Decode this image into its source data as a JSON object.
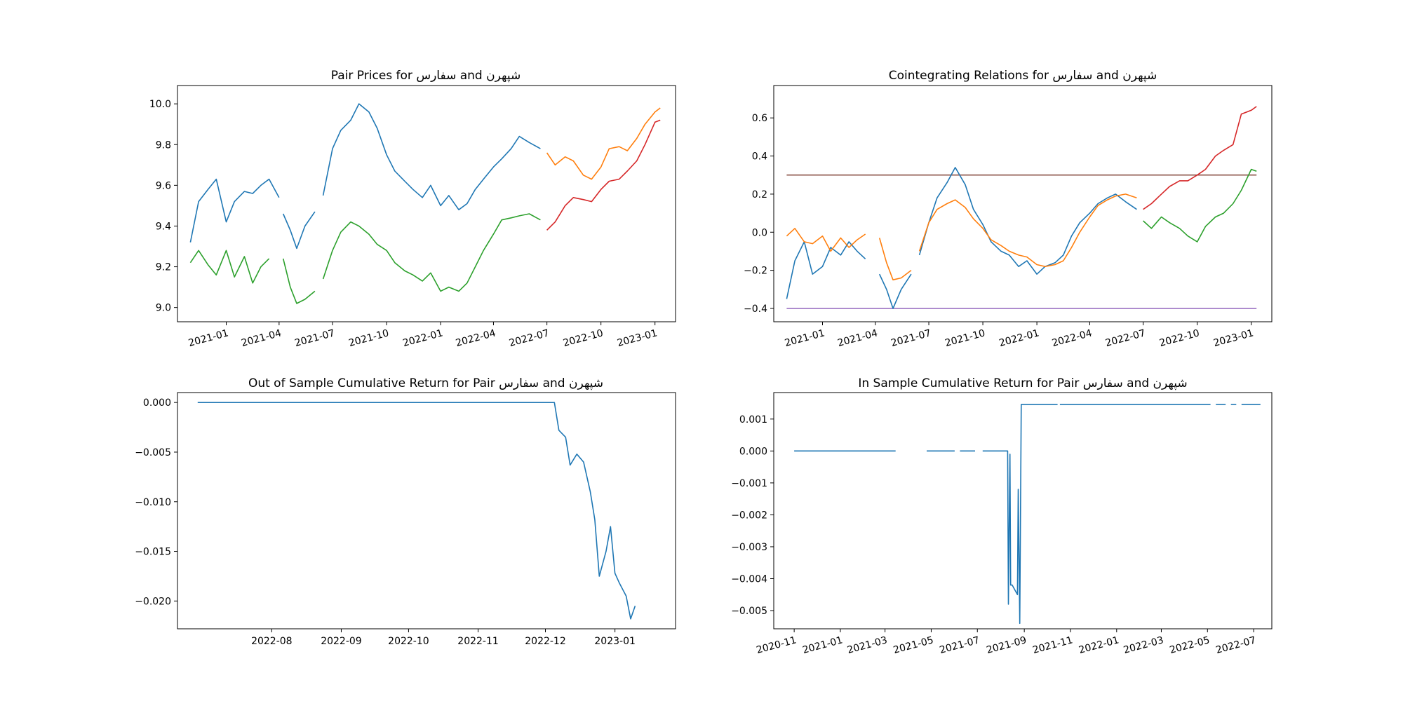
{
  "chart_data": [
    {
      "type": "line",
      "title": "Pair Prices for سفارس and شپهرن",
      "xaxis": "date",
      "xlim": [
        "2020-10-10",
        "2023-02-05"
      ],
      "ylim": [
        8.93,
        10.09
      ],
      "xticks": [
        "2021-01-01",
        "2021-04-01",
        "2021-07-01",
        "2021-10-01",
        "2022-01-01",
        "2022-04-01",
        "2022-07-01",
        "2022-10-01",
        "2023-01-01"
      ],
      "xtick_labels": [
        "2021-01",
        "2021-04",
        "2021-07",
        "2021-10",
        "2022-01",
        "2022-04",
        "2022-07",
        "2022-10",
        "2023-01"
      ],
      "yticks": [
        9.0,
        9.2,
        9.4,
        9.6,
        9.8,
        10.0
      ],
      "ytick_labels": [
        "9.0",
        "9.2",
        "9.4",
        "9.6",
        "9.8",
        "10.0"
      ],
      "series": [
        {
          "color": "#1f77b4",
          "x": [
            "2020-11-01",
            "2020-11-15",
            "2020-12-01",
            "2020-12-15",
            "2021-01-01",
            "2021-01-15",
            "2021-02-01",
            "2021-02-15",
            "2021-03-01",
            "2021-03-15",
            "2021-04-01"
          ],
          "y": [
            9.32,
            9.52,
            9.58,
            9.63,
            9.42,
            9.52,
            9.57,
            9.56,
            9.6,
            9.63,
            9.54
          ]
        },
        {
          "color": "#1f77b4",
          "x": [
            "2021-04-08",
            "2021-04-20",
            "2021-05-01",
            "2021-05-15",
            "2021-06-01"
          ],
          "y": [
            9.46,
            9.38,
            9.29,
            9.4,
            9.47
          ]
        },
        {
          "color": "#1f77b4",
          "x": [
            "2021-06-15",
            "2021-07-01",
            "2021-07-15",
            "2021-08-01",
            "2021-08-15",
            "2021-09-01",
            "2021-09-15",
            "2021-10-01",
            "2021-10-15",
            "2021-11-01",
            "2021-11-15",
            "2021-12-01",
            "2021-12-15",
            "2022-01-01",
            "2022-01-15",
            "2022-02-01",
            "2022-02-15",
            "2022-03-01",
            "2022-03-15",
            "2022-04-01",
            "2022-04-15",
            "2022-05-01",
            "2022-05-15",
            "2022-06-01",
            "2022-06-20"
          ],
          "y": [
            9.55,
            9.78,
            9.87,
            9.92,
            10.0,
            9.96,
            9.88,
            9.75,
            9.67,
            9.62,
            9.58,
            9.54,
            9.6,
            9.5,
            9.55,
            9.48,
            9.51,
            9.58,
            9.63,
            9.69,
            9.73,
            9.78,
            9.84,
            9.81,
            9.78
          ]
        },
        {
          "color": "#2ca02c",
          "x": [
            "2020-11-01",
            "2020-11-15",
            "2020-12-01",
            "2020-12-15",
            "2021-01-01",
            "2021-01-15",
            "2021-02-01",
            "2021-02-15",
            "2021-03-01",
            "2021-03-15"
          ],
          "y": [
            9.22,
            9.28,
            9.21,
            9.16,
            9.28,
            9.15,
            9.25,
            9.12,
            9.2,
            9.24
          ]
        },
        {
          "color": "#2ca02c",
          "x": [
            "2021-04-08",
            "2021-04-20",
            "2021-05-01",
            "2021-05-15",
            "2021-06-01"
          ],
          "y": [
            9.24,
            9.1,
            9.02,
            9.04,
            9.08
          ]
        },
        {
          "color": "#2ca02c",
          "x": [
            "2021-06-15",
            "2021-07-01",
            "2021-07-15",
            "2021-08-01",
            "2021-08-15",
            "2021-09-01",
            "2021-09-15",
            "2021-10-01",
            "2021-10-15",
            "2021-11-01",
            "2021-11-15",
            "2021-12-01",
            "2021-12-15",
            "2022-01-01",
            "2022-01-15",
            "2022-02-01",
            "2022-02-15",
            "2022-03-01",
            "2022-03-15",
            "2022-04-01",
            "2022-04-15",
            "2022-05-01",
            "2022-05-15",
            "2022-06-01",
            "2022-06-20"
          ],
          "y": [
            9.14,
            9.28,
            9.37,
            9.42,
            9.4,
            9.36,
            9.31,
            9.28,
            9.22,
            9.18,
            9.16,
            9.13,
            9.17,
            9.08,
            9.1,
            9.08,
            9.12,
            9.2,
            9.28,
            9.36,
            9.43,
            9.44,
            9.45,
            9.46,
            9.43
          ]
        },
        {
          "color": "#ff7f0e",
          "x": [
            "2022-07-01",
            "2022-07-15",
            "2022-08-01",
            "2022-08-15",
            "2022-09-01",
            "2022-09-15",
            "2022-10-01",
            "2022-10-15",
            "2022-11-01",
            "2022-11-15",
            "2022-12-01",
            "2022-12-15",
            "2023-01-01",
            "2023-01-10"
          ],
          "y": [
            9.76,
            9.7,
            9.74,
            9.72,
            9.65,
            9.63,
            9.69,
            9.78,
            9.79,
            9.77,
            9.83,
            9.9,
            9.96,
            9.98
          ]
        },
        {
          "color": "#d62728",
          "x": [
            "2022-07-01",
            "2022-07-15",
            "2022-08-01",
            "2022-08-15",
            "2022-09-01",
            "2022-09-15",
            "2022-10-01",
            "2022-10-15",
            "2022-11-01",
            "2022-11-15",
            "2022-12-01",
            "2022-12-15",
            "2023-01-01",
            "2023-01-10"
          ],
          "y": [
            9.38,
            9.42,
            9.5,
            9.54,
            9.53,
            9.52,
            9.58,
            9.62,
            9.63,
            9.67,
            9.72,
            9.8,
            9.91,
            9.92
          ]
        }
      ]
    },
    {
      "type": "line",
      "title": "Cointegrating Relations for سفارس and شپهرن",
      "xaxis": "date",
      "xlim": [
        "2020-10-10",
        "2023-02-05"
      ],
      "ylim": [
        -0.47,
        0.77
      ],
      "xticks": [
        "2021-01-01",
        "2021-04-01",
        "2021-07-01",
        "2021-10-01",
        "2022-01-01",
        "2022-04-01",
        "2022-07-01",
        "2022-10-01",
        "2023-01-01"
      ],
      "xtick_labels": [
        "2021-01",
        "2021-04",
        "2021-07",
        "2021-10",
        "2022-01",
        "2022-04",
        "2022-07",
        "2022-10",
        "2023-01"
      ],
      "yticks": [
        -0.4,
        -0.2,
        0.0,
        0.2,
        0.4,
        0.6
      ],
      "ytick_labels": [
        "−0.4",
        "−0.2",
        "0.0",
        "0.2",
        "0.4",
        "0.6"
      ],
      "series": [
        {
          "color": "#8c564b",
          "x": [
            "2020-11-01",
            "2023-01-10"
          ],
          "y": [
            0.3,
            0.3
          ]
        },
        {
          "color": "#9467bd",
          "x": [
            "2020-11-01",
            "2023-01-10"
          ],
          "y": [
            -0.4,
            -0.4
          ]
        },
        {
          "color": "#1f77b4",
          "x": [
            "2020-11-01",
            "2020-11-15",
            "2020-12-01",
            "2020-12-15",
            "2021-01-01",
            "2021-01-15",
            "2021-02-01",
            "2021-02-15",
            "2021-03-01",
            "2021-03-15"
          ],
          "y": [
            -0.35,
            -0.15,
            -0.05,
            -0.22,
            -0.18,
            -0.08,
            -0.12,
            -0.05,
            -0.1,
            -0.14
          ]
        },
        {
          "color": "#1f77b4",
          "x": [
            "2021-04-08",
            "2021-04-20",
            "2021-05-01",
            "2021-05-15",
            "2021-06-01"
          ],
          "y": [
            -0.22,
            -0.3,
            -0.4,
            -0.3,
            -0.22
          ]
        },
        {
          "color": "#1f77b4",
          "x": [
            "2021-06-15",
            "2021-07-01",
            "2021-07-15",
            "2021-08-01",
            "2021-08-15",
            "2021-09-01",
            "2021-09-15",
            "2021-10-01",
            "2021-10-15",
            "2021-11-01",
            "2021-11-15",
            "2021-12-01",
            "2021-12-15",
            "2022-01-01",
            "2022-01-15",
            "2022-02-01",
            "2022-02-15",
            "2022-03-01",
            "2022-03-15",
            "2022-04-01",
            "2022-04-15",
            "2022-05-01",
            "2022-05-15",
            "2022-06-01",
            "2022-06-20"
          ],
          "y": [
            -0.12,
            0.05,
            0.18,
            0.26,
            0.34,
            0.25,
            0.12,
            0.04,
            -0.05,
            -0.1,
            -0.12,
            -0.18,
            -0.15,
            -0.22,
            -0.18,
            -0.16,
            -0.12,
            -0.02,
            0.05,
            0.1,
            0.15,
            0.18,
            0.2,
            0.16,
            0.12
          ]
        },
        {
          "color": "#ff7f0e",
          "x": [
            "2020-11-01",
            "2020-11-15",
            "2020-12-01",
            "2020-12-15",
            "2021-01-01",
            "2021-01-15",
            "2021-02-01",
            "2021-02-15",
            "2021-03-01",
            "2021-03-15"
          ],
          "y": [
            -0.02,
            0.02,
            -0.05,
            -0.06,
            -0.02,
            -0.1,
            -0.03,
            -0.08,
            -0.04,
            -0.01
          ]
        },
        {
          "color": "#ff7f0e",
          "x": [
            "2021-04-08",
            "2021-04-20",
            "2021-05-01",
            "2021-05-15",
            "2021-06-01"
          ],
          "y": [
            -0.03,
            -0.16,
            -0.25,
            -0.24,
            -0.2
          ]
        },
        {
          "color": "#ff7f0e",
          "x": [
            "2021-06-15",
            "2021-07-01",
            "2021-07-15",
            "2021-08-01",
            "2021-08-15",
            "2021-09-01",
            "2021-09-15",
            "2021-10-01",
            "2021-10-15",
            "2021-11-01",
            "2021-11-15",
            "2021-12-01",
            "2021-12-15",
            "2022-01-01",
            "2022-01-15",
            "2022-02-01",
            "2022-02-15",
            "2022-03-01",
            "2022-03-15",
            "2022-04-01",
            "2022-04-15",
            "2022-05-01",
            "2022-05-15",
            "2022-06-01",
            "2022-06-20"
          ],
          "y": [
            -0.1,
            0.05,
            0.12,
            0.15,
            0.17,
            0.13,
            0.07,
            0.02,
            -0.04,
            -0.07,
            -0.1,
            -0.12,
            -0.13,
            -0.17,
            -0.18,
            -0.17,
            -0.15,
            -0.08,
            0.0,
            0.08,
            0.14,
            0.17,
            0.19,
            0.2,
            0.18
          ]
        },
        {
          "color": "#2ca02c",
          "x": [
            "2022-07-01",
            "2022-07-15",
            "2022-08-01",
            "2022-08-15",
            "2022-09-01",
            "2022-09-15",
            "2022-10-01",
            "2022-10-15",
            "2022-11-01",
            "2022-11-15",
            "2022-12-01",
            "2022-12-15",
            "2023-01-01",
            "2023-01-10"
          ],
          "y": [
            0.06,
            0.02,
            0.08,
            0.05,
            0.02,
            -0.02,
            -0.05,
            0.03,
            0.08,
            0.1,
            0.15,
            0.22,
            0.33,
            0.32
          ]
        },
        {
          "color": "#d62728",
          "x": [
            "2022-07-01",
            "2022-07-15",
            "2022-08-01",
            "2022-08-15",
            "2022-09-01",
            "2022-09-15",
            "2022-10-01",
            "2022-10-15",
            "2022-11-01",
            "2022-11-15",
            "2022-12-01",
            "2022-12-15",
            "2023-01-01",
            "2023-01-10"
          ],
          "y": [
            0.12,
            0.15,
            0.2,
            0.24,
            0.27,
            0.27,
            0.3,
            0.33,
            0.4,
            0.43,
            0.46,
            0.62,
            0.64,
            0.66
          ]
        }
      ]
    },
    {
      "type": "line",
      "title": "Out of Sample Cumulative Return for Pair سفارس and شپهرن",
      "xaxis": "date",
      "xlim": [
        "2022-06-20",
        "2023-01-28"
      ],
      "ylim": [
        -0.0228,
        0.001
      ],
      "xticks": [
        "2022-08-01",
        "2022-09-01",
        "2022-10-01",
        "2022-11-01",
        "2022-12-01",
        "2023-01-01"
      ],
      "xtick_labels": [
        "2022-08",
        "2022-09",
        "2022-10",
        "2022-11",
        "2022-12",
        "2023-01"
      ],
      "yticks": [
        0.0,
        -0.005,
        -0.01,
        -0.015,
        -0.02
      ],
      "ytick_labels": [
        "0.000",
        "−0.005",
        "−0.010",
        "−0.015",
        "−0.020"
      ],
      "series": [
        {
          "color": "#1f77b4",
          "x": [
            "2022-06-29",
            "2022-12-05",
            "2022-12-07",
            "2022-12-10",
            "2022-12-12",
            "2022-12-15",
            "2022-12-18",
            "2022-12-21",
            "2022-12-23",
            "2022-12-25",
            "2022-12-28",
            "2022-12-30",
            "2023-01-01",
            "2023-01-03",
            "2023-01-06",
            "2023-01-08",
            "2023-01-10"
          ],
          "y": [
            0.0,
            0.0,
            -0.0028,
            -0.0035,
            -0.0063,
            -0.0052,
            -0.006,
            -0.009,
            -0.0118,
            -0.0175,
            -0.015,
            -0.0125,
            -0.0172,
            -0.0182,
            -0.0195,
            -0.0218,
            -0.0205
          ]
        }
      ]
    },
    {
      "type": "line",
      "title": "In Sample Cumulative Return for Pair سفارس and شپهرن",
      "xaxis": "date",
      "xlim": [
        "2020-10-05",
        "2022-07-25"
      ],
      "ylim": [
        -0.00557,
        0.00183
      ],
      "xticks": [
        "2020-11-01",
        "2021-01-01",
        "2021-03-01",
        "2021-05-01",
        "2021-07-01",
        "2021-09-01",
        "2021-11-01",
        "2022-01-01",
        "2022-03-01",
        "2022-05-01",
        "2022-07-01"
      ],
      "xtick_labels": [
        "2020-11",
        "2021-01",
        "2021-03",
        "2021-05",
        "2021-07",
        "2021-09",
        "2021-11",
        "2022-01",
        "2022-03",
        "2022-05",
        "2022-07"
      ],
      "yticks": [
        0.001,
        0.0,
        -0.001,
        -0.002,
        -0.003,
        -0.004,
        -0.005
      ],
      "ytick_labels": [
        "0.001",
        "0.000",
        "−0.001",
        "−0.002",
        "−0.003",
        "−0.004",
        "−0.005"
      ],
      "series": [
        {
          "color": "#1f77b4",
          "x": [
            "2020-11-01",
            "2021-03-15"
          ],
          "y": [
            0.0,
            0.0
          ]
        },
        {
          "color": "#1f77b4",
          "x": [
            "2021-04-25",
            "2021-06-01"
          ],
          "y": [
            0.0,
            0.0
          ]
        },
        {
          "color": "#1f77b4",
          "x": [
            "2021-06-08",
            "2021-06-28"
          ],
          "y": [
            0.0,
            0.0
          ]
        },
        {
          "color": "#1f77b4",
          "x": [
            "2021-07-08",
            "2021-08-10",
            "2021-08-11",
            "2021-08-13",
            "2021-08-14",
            "2021-08-16",
            "2021-08-23",
            "2021-08-24",
            "2021-08-26",
            "2021-08-28",
            "2021-08-30",
            "2021-10-15"
          ],
          "y": [
            0.0,
            0.0,
            -0.0048,
            -0.0001,
            -0.0042,
            -0.0042,
            -0.0045,
            -0.0012,
            -0.0054,
            0.00146,
            0.00146,
            0.00146
          ]
        },
        {
          "color": "#1f77b4",
          "x": [
            "2021-10-18",
            "2022-05-05"
          ],
          "y": [
            0.00146,
            0.00146
          ]
        },
        {
          "color": "#1f77b4",
          "x": [
            "2022-05-12",
            "2022-05-25"
          ],
          "y": [
            0.00146,
            0.00146
          ]
        },
        {
          "color": "#1f77b4",
          "x": [
            "2022-06-01",
            "2022-06-08"
          ],
          "y": [
            0.00146,
            0.00146
          ]
        },
        {
          "color": "#1f77b4",
          "x": [
            "2022-06-15",
            "2022-07-10"
          ],
          "y": [
            0.00146,
            0.00146
          ]
        }
      ]
    }
  ]
}
